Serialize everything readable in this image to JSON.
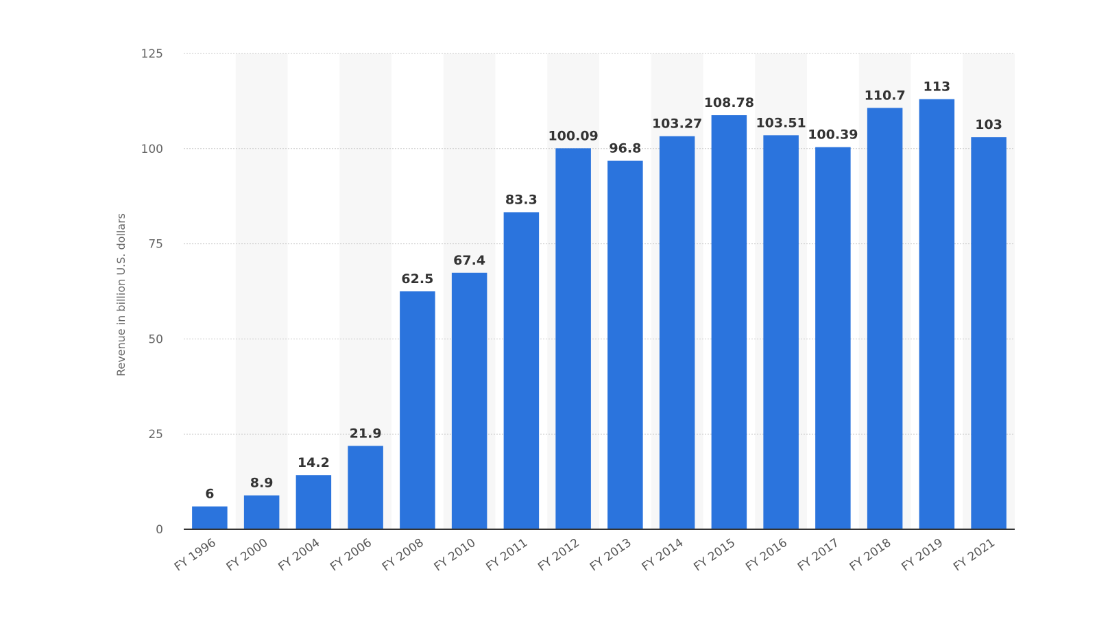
{
  "chart_data": {
    "type": "bar",
    "ylabel": "Revenue in billion U.S. dollars",
    "xlabel": "",
    "ylim": [
      0,
      125
    ],
    "yticks": [
      0,
      25,
      50,
      75,
      100,
      125
    ],
    "grid": true,
    "bar_color": "#2b74dd",
    "categories": [
      "FY 1996",
      "FY 2000",
      "FY 2004",
      "FY 2006",
      "FY 2008",
      "FY 2010",
      "FY 2011",
      "FY 2012",
      "FY 2013",
      "FY 2014",
      "FY 2015",
      "FY 2016",
      "FY 2017",
      "FY 2018",
      "FY 2019",
      "FY 2021"
    ],
    "values": [
      6,
      8.9,
      14.2,
      21.9,
      62.5,
      67.4,
      83.3,
      100.09,
      96.8,
      103.27,
      108.78,
      103.51,
      100.39,
      110.7,
      113,
      103
    ],
    "data_labels": [
      "6",
      "8.9",
      "14.2",
      "21.9",
      "62.5",
      "67.4",
      "83.3",
      "100.09",
      "96.8",
      "103.27",
      "108.78",
      "103.51",
      "100.39",
      "110.7",
      "113",
      "103"
    ]
  }
}
